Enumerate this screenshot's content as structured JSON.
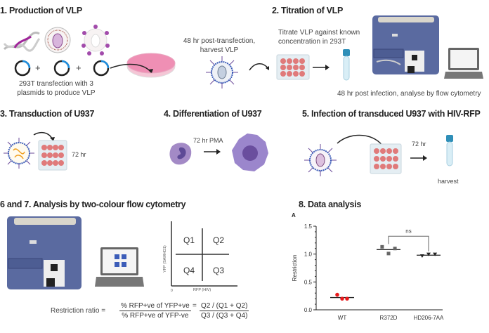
{
  "steps": {
    "s1": {
      "title": "1. Production of VLP",
      "caption_1": "293T transfection with 3",
      "caption_2": "plasmids to produce VLP",
      "plus": "+"
    },
    "harvest": {
      "line1": "48 hr post-transfection,",
      "line2": "harvest VLP"
    },
    "s2": {
      "title": "2. Titration of VLP",
      "caption_1": "Titrate VLP against known",
      "caption_2": "concentration in 293T",
      "caption_3": "48 hr post infection, analyse by flow cytometry"
    },
    "s3": {
      "title": "3. Transduction of U937",
      "time": "72 hr"
    },
    "s4": {
      "title": "4. Differentiation of U937",
      "time": "72 hr PMA"
    },
    "s5": {
      "title": "5. Infection of transduced U937 with HIV-RFP",
      "time": "72 hr",
      "harvest": "harvest"
    },
    "s67": {
      "title": "6 and 7. Analysis by two-colour flow cytometry",
      "quadrants": [
        "Q1",
        "Q2",
        "Q4",
        "Q3"
      ],
      "xlabel": "RFP (HIV)",
      "ylabel": "YFP (SAMHD1)",
      "origin": "0",
      "formula_label": "Restriction ratio =",
      "formula_num": "% RFP+ve of YFP+ve",
      "formula_den": "% RFP+ve of YFP-ve",
      "formula_eq": "=",
      "formula_num2": "Q2 / (Q1 + Q2)",
      "formula_den2": "Q3 / (Q3 + Q4)"
    },
    "s8": {
      "title": "8. Data analysis"
    }
  },
  "chart_data": {
    "type": "scatter",
    "panel_label": "A",
    "ylabel": "Restriction",
    "xlabel": "",
    "ylim": [
      0,
      1.5
    ],
    "yticks": [
      "0.0",
      "0.5",
      "1.0",
      "1.5"
    ],
    "categories": [
      "WT",
      "R372D",
      "HD206-7AA"
    ],
    "series": [
      {
        "name": "WT",
        "values": [
          0.27,
          0.2,
          0.2
        ],
        "mean": 0.22,
        "color": "#e8191b",
        "marker": "circle"
      },
      {
        "name": "R372D",
        "values": [
          1.13,
          1.01,
          1.1
        ],
        "mean": 1.08,
        "color": "#666666",
        "marker": "square"
      },
      {
        "name": "HD206-7AA",
        "values": [
          0.97,
          1.0,
          1.0
        ],
        "mean": 0.98,
        "color": "#222222",
        "marker": "triangle-down"
      }
    ],
    "annotation": {
      "text": "ns",
      "between": [
        "R372D",
        "HD206-7AA"
      ]
    }
  }
}
